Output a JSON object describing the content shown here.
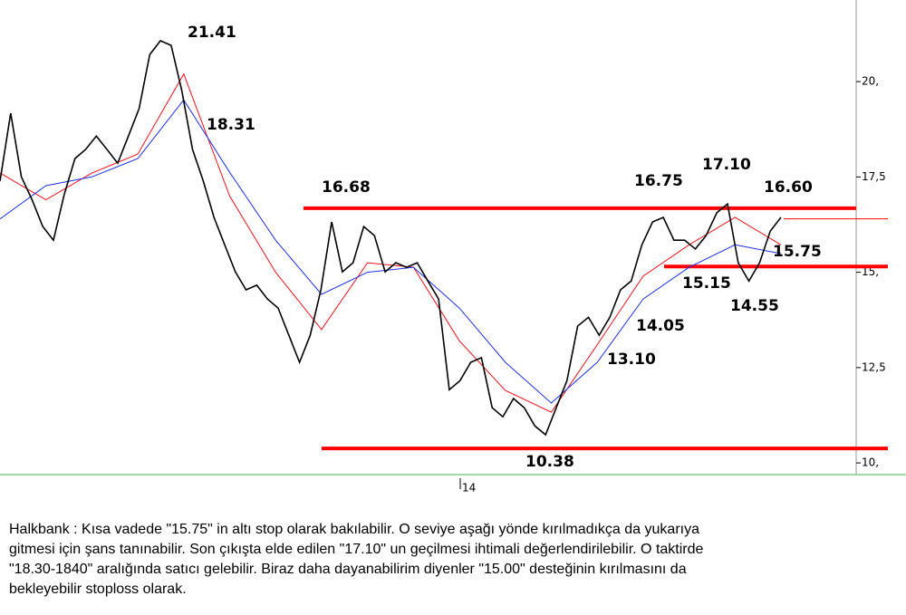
{
  "chart_data": {
    "type": "line",
    "ylim": [
      9.67,
      22.14
    ],
    "yticks": [
      {
        "value": 10,
        "label": "10,"
      },
      {
        "value": 12.5,
        "label": "12,5"
      },
      {
        "value": 15,
        "label": "15,"
      },
      {
        "value": 17.5,
        "label": "17,5"
      },
      {
        "value": 20,
        "label": "20,"
      }
    ],
    "x_tick_label": "14",
    "series": [
      {
        "name": "Price",
        "color": "#000000",
        "values": [
          17.39,
          19.17,
          17.5,
          16.9,
          16.2,
          15.84,
          17.03,
          17.98,
          18.22,
          18.57,
          18.22,
          17.86,
          18.57,
          19.29,
          20.71,
          21.07,
          20.95,
          19.76,
          18.22,
          17.39,
          16.44,
          15.72,
          15.01,
          14.54,
          14.66,
          14.3,
          14.06,
          13.35,
          12.64,
          13.35,
          14.54,
          16.32,
          15.01,
          15.25,
          16.2,
          15.96,
          15.01,
          15.25,
          15.13,
          15.25,
          14.77,
          14.3,
          11.92,
          12.16,
          12.64,
          12.76,
          11.45,
          11.21,
          11.69,
          11.45,
          10.97,
          10.74,
          11.45,
          12.16,
          13.59,
          13.82,
          13.35,
          13.82,
          14.54,
          14.77,
          15.72,
          16.32,
          16.44,
          15.84,
          15.84,
          15.61,
          15.96,
          16.56,
          16.79,
          15.25,
          14.77,
          15.25,
          16.08,
          16.44
        ]
      },
      {
        "name": "MA short",
        "color": "#e8141e",
        "values": [
          17.6,
          16.9,
          17.6,
          18.1,
          20.2,
          17.0,
          15.0,
          13.5,
          15.25,
          15.13,
          13.2,
          11.9,
          11.33,
          13.1,
          14.9,
          15.72,
          16.44,
          15.72
        ]
      },
      {
        "name": "MA long",
        "color": "#2030e0",
        "values": [
          16.4,
          17.27,
          17.5,
          17.98,
          19.52,
          17.62,
          15.84,
          14.42,
          15.0,
          15.13,
          14.06,
          12.64,
          11.57,
          12.64,
          14.3,
          15.13,
          15.72,
          15.49
        ]
      }
    ],
    "levels": [
      16.68,
      15.15,
      10.38,
      16.4
    ],
    "level_color": "#ff0000",
    "annotations": [
      21.41,
      18.31,
      16.68,
      16.75,
      17.1,
      16.6,
      15.75,
      15.15,
      14.55,
      14.05,
      13.1,
      10.38
    ],
    "annotation_labels": [
      "21.41",
      "18.31",
      "16.68",
      "16.75",
      "17.10",
      "16.60",
      "15.75",
      "15.15",
      "14.55",
      "14.05",
      "13.10",
      "10.38"
    ]
  },
  "note": [
    "Halkbank : Kısa vadede \"15.75\" in altı stop olarak bakılabilir. O seviye aşağı yönde kırılmadıkça da yukarıya",
    "gitmesi için şans tanınabilir. Son çıkışta elde edilen \"17.10\" un geçilmesi ihtimali değerlendirilebilir. O taktirde",
    "\"18.30-1840\" aralığında satıcı gelebilir. Biraz daha dayanabilirim diyenler \"15.00\" desteğinin kırılmasını da",
    "bekleyebilir stoploss olarak.",
    ""
  ]
}
